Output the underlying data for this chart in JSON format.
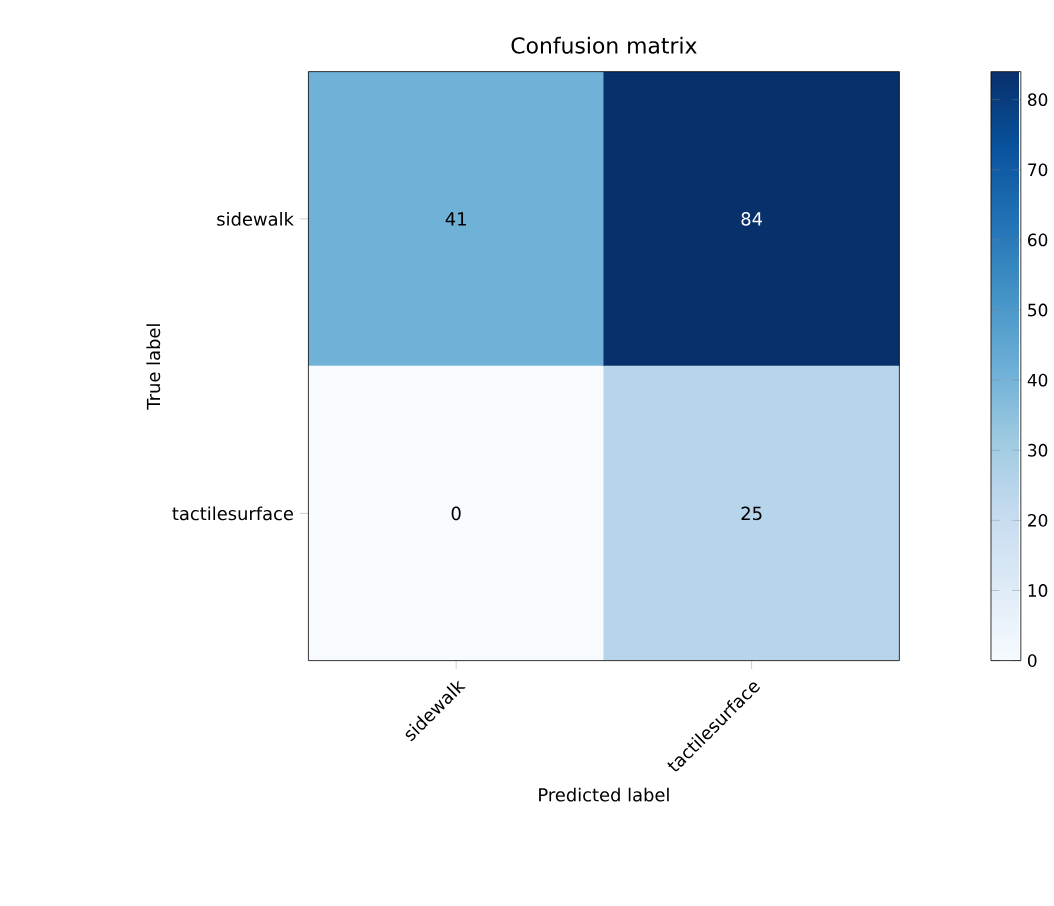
{
  "chart_data": {
    "type": "heatmap",
    "title": "Confusion matrix",
    "xlabel": "Predicted label",
    "ylabel": "True label",
    "categories": [
      "sidewalk",
      "tactilesurface"
    ],
    "y_categories": [
      "sidewalk",
      "tactilesurface"
    ],
    "cells": [
      [
        41,
        84
      ],
      [
        0,
        25
      ]
    ],
    "clim": [
      0,
      84
    ],
    "cticks": [
      0,
      10,
      20,
      30,
      40,
      50,
      60,
      70,
      80
    ],
    "data_labels": true,
    "grid": false
  }
}
